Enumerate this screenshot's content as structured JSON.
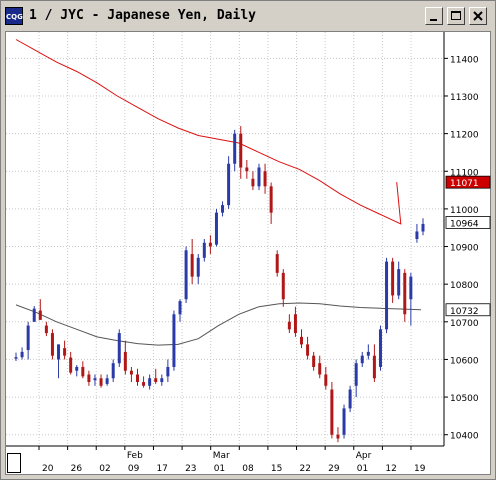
{
  "window": {
    "title": "1 / JYC - Japanese Yen, Daily",
    "icon_label": "CQG",
    "controls": [
      "minimize-icon",
      "maximize-icon",
      "close-icon"
    ]
  },
  "chart_data": {
    "type": "candlestick",
    "y_ticks": [
      "11400",
      "11300",
      "11200",
      "11100",
      "11000",
      "10900",
      "10800",
      "10700",
      "10600",
      "10500",
      "10400"
    ],
    "ylim": [
      10370,
      11470
    ],
    "x_day_labels": [
      "20",
      "26",
      "02",
      "09",
      "17",
      "23",
      "01",
      "08",
      "15",
      "22",
      "29",
      "01",
      "12",
      "19"
    ],
    "x_month_labels": [
      "Feb",
      "Mar",
      "Apr"
    ],
    "price_labels": [
      {
        "text": "11071",
        "value": 11071,
        "color": "#cc0000"
      },
      {
        "text": "10964",
        "value": 10964,
        "color": "#000000"
      },
      {
        "text": "10732",
        "value": 10732,
        "color": "#000000"
      }
    ],
    "grid": true,
    "colors": {
      "up": "#2a3aa8",
      "down": "#b01818",
      "ma_long": "#dd1111",
      "ma_short": "#555555"
    },
    "series": [
      {
        "name": "candles",
        "bars": [
          [
            10606,
            10618,
            10596,
            10606
          ],
          [
            10606,
            10632,
            10600,
            10620
          ],
          [
            10625,
            10700,
            10600,
            10690
          ],
          [
            10700,
            10742,
            10700,
            10735
          ],
          [
            10730,
            10760,
            10720,
            10705
          ],
          [
            10690,
            10700,
            10662,
            10670
          ],
          [
            10670,
            10680,
            10600,
            10610
          ],
          [
            10600,
            10640,
            10550,
            10640
          ],
          [
            10630,
            10650,
            10600,
            10610
          ],
          [
            10605,
            10620,
            10560,
            10565
          ],
          [
            10570,
            10585,
            10555,
            10580
          ],
          [
            10580,
            10595,
            10550,
            10555
          ],
          [
            10560,
            10570,
            10530,
            10540
          ],
          [
            10545,
            10560,
            10530,
            10550
          ],
          [
            10550,
            10560,
            10525,
            10530
          ],
          [
            10535,
            10560,
            10530,
            10550
          ],
          [
            10550,
            10600,
            10540,
            10590
          ],
          [
            10590,
            10680,
            10580,
            10670
          ],
          [
            10620,
            10650,
            10560,
            10570
          ],
          [
            10570,
            10580,
            10540,
            10560
          ],
          [
            10560,
            10575,
            10530,
            10540
          ],
          [
            10540,
            10555,
            10525,
            10530
          ],
          [
            10530,
            10560,
            10520,
            10550
          ],
          [
            10550,
            10575,
            10535,
            10540
          ],
          [
            10540,
            10560,
            10530,
            10550
          ],
          [
            10555,
            10600,
            10540,
            10580
          ],
          [
            10580,
            10730,
            10570,
            10720
          ],
          [
            10720,
            10760,
            10700,
            10755
          ],
          [
            10760,
            10900,
            10750,
            10890
          ],
          [
            10880,
            10920,
            10800,
            10820
          ],
          [
            10820,
            10880,
            10800,
            10870
          ],
          [
            10870,
            10920,
            10860,
            10910
          ],
          [
            10910,
            10930,
            10880,
            10900
          ],
          [
            10905,
            11000,
            10900,
            10990
          ],
          [
            10990,
            11020,
            10980,
            11010
          ],
          [
            11010,
            11140,
            11000,
            11120
          ],
          [
            11120,
            11210,
            11100,
            11200
          ],
          [
            11200,
            11220,
            11080,
            11110
          ],
          [
            11110,
            11130,
            11080,
            11100
          ],
          [
            11080,
            11100,
            11050,
            11060
          ],
          [
            11060,
            11120,
            11050,
            11110
          ],
          [
            11100,
            11120,
            11040,
            11060
          ],
          [
            11060,
            11070,
            10960,
            10990
          ],
          [
            10880,
            10890,
            10820,
            10830
          ],
          [
            10830,
            10840,
            10740,
            10760
          ],
          [
            10700,
            10720,
            10670,
            10680
          ],
          [
            10720,
            10740,
            10660,
            10670
          ],
          [
            10660,
            10680,
            10630,
            10640
          ],
          [
            10640,
            10660,
            10600,
            10610
          ],
          [
            10610,
            10620,
            10570,
            10580
          ],
          [
            10590,
            10610,
            10550,
            10560
          ],
          [
            10560,
            10580,
            10520,
            10530
          ],
          [
            10520,
            10540,
            10390,
            10400
          ],
          [
            10400,
            10420,
            10380,
            10390
          ],
          [
            10400,
            10480,
            10390,
            10470
          ],
          [
            10470,
            10530,
            10460,
            10520
          ],
          [
            10530,
            10600,
            10500,
            10590
          ],
          [
            10590,
            10620,
            10580,
            10610
          ],
          [
            10610,
            10640,
            10600,
            10620
          ],
          [
            10610,
            10640,
            10540,
            10550
          ],
          [
            10580,
            10690,
            10570,
            10680
          ],
          [
            10680,
            10870,
            10670,
            10860
          ],
          [
            10860,
            10870,
            10750,
            10770
          ],
          [
            10770,
            10860,
            10760,
            10840
          ],
          [
            10830,
            10840,
            10700,
            10720
          ],
          [
            10760,
            10830,
            10690,
            10820
          ],
          [
            10920,
            10960,
            10910,
            10940
          ],
          [
            10940,
            10975,
            10930,
            10960
          ]
        ]
      },
      {
        "name": "ma-long",
        "points": [
          [
            0,
            11450
          ],
          [
            0.05,
            11420
          ],
          [
            0.1,
            11390
          ],
          [
            0.15,
            11365
          ],
          [
            0.2,
            11335
          ],
          [
            0.25,
            11300
          ],
          [
            0.3,
            11270
          ],
          [
            0.35,
            11240
          ],
          [
            0.4,
            11215
          ],
          [
            0.45,
            11195
          ],
          [
            0.5,
            11185
          ],
          [
            0.55,
            11175
          ],
          [
            0.6,
            11150
          ],
          [
            0.65,
            11125
          ],
          [
            0.7,
            11105
          ],
          [
            0.75,
            11075
          ],
          [
            0.8,
            11040
          ],
          [
            0.85,
            11010
          ],
          [
            0.9,
            10985
          ],
          [
            0.95,
            10960
          ],
          [
            1,
            11071
          ]
        ]
      },
      {
        "name": "ma-short",
        "points": [
          [
            0,
            10745
          ],
          [
            0.05,
            10725
          ],
          [
            0.1,
            10700
          ],
          [
            0.15,
            10680
          ],
          [
            0.2,
            10660
          ],
          [
            0.25,
            10650
          ],
          [
            0.3,
            10642
          ],
          [
            0.35,
            10638
          ],
          [
            0.4,
            10640
          ],
          [
            0.45,
            10655
          ],
          [
            0.5,
            10690
          ],
          [
            0.55,
            10720
          ],
          [
            0.6,
            10740
          ],
          [
            0.65,
            10748
          ],
          [
            0.7,
            10750
          ],
          [
            0.75,
            10748
          ],
          [
            0.8,
            10742
          ],
          [
            0.85,
            10738
          ],
          [
            0.9,
            10736
          ],
          [
            0.95,
            10734
          ],
          [
            1,
            10732
          ]
        ]
      }
    ]
  }
}
